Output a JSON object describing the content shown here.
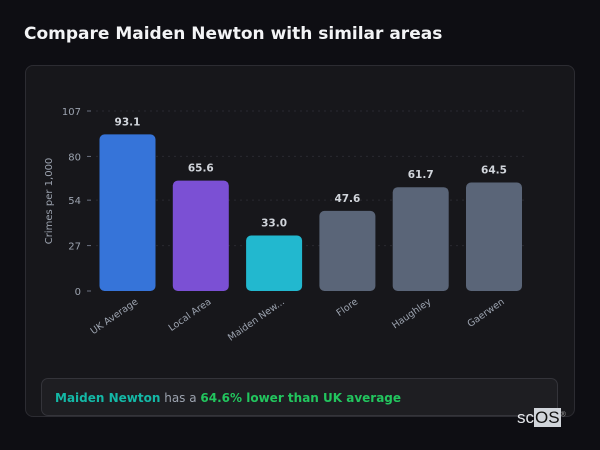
{
  "header": {
    "title": "Compare Maiden Newton with similar areas"
  },
  "chart_data": {
    "type": "bar",
    "categories": [
      "UK Average",
      "Local Area",
      "Maiden Newton",
      "Flore",
      "Haughley",
      "Gaerwen"
    ],
    "tick_display": [
      "UK Average",
      "Local Area",
      "Maiden New...",
      "Flore",
      "Haughley",
      "Gaerwen"
    ],
    "values": [
      93.1,
      65.6,
      33.0,
      47.6,
      61.7,
      64.5
    ],
    "data_labels": [
      "93.1",
      "65.6",
      "33.0",
      "47.6",
      "61.7",
      "64.5"
    ],
    "colors": [
      "#3674d9",
      "#7b50d4",
      "#22b8cf",
      "#5a6578",
      "#5a6578",
      "#5a6578"
    ],
    "ylabel": "Crimes per 1,000",
    "xlabel": "",
    "ylim": [
      0,
      107
    ],
    "yticks": [
      0,
      27,
      54,
      80,
      107
    ],
    "grid": true
  },
  "summary": {
    "area": "Maiden Newton",
    "middle": " has a ",
    "comparison": "64.6% lower than UK average"
  },
  "logo": {
    "text": "scOS"
  }
}
